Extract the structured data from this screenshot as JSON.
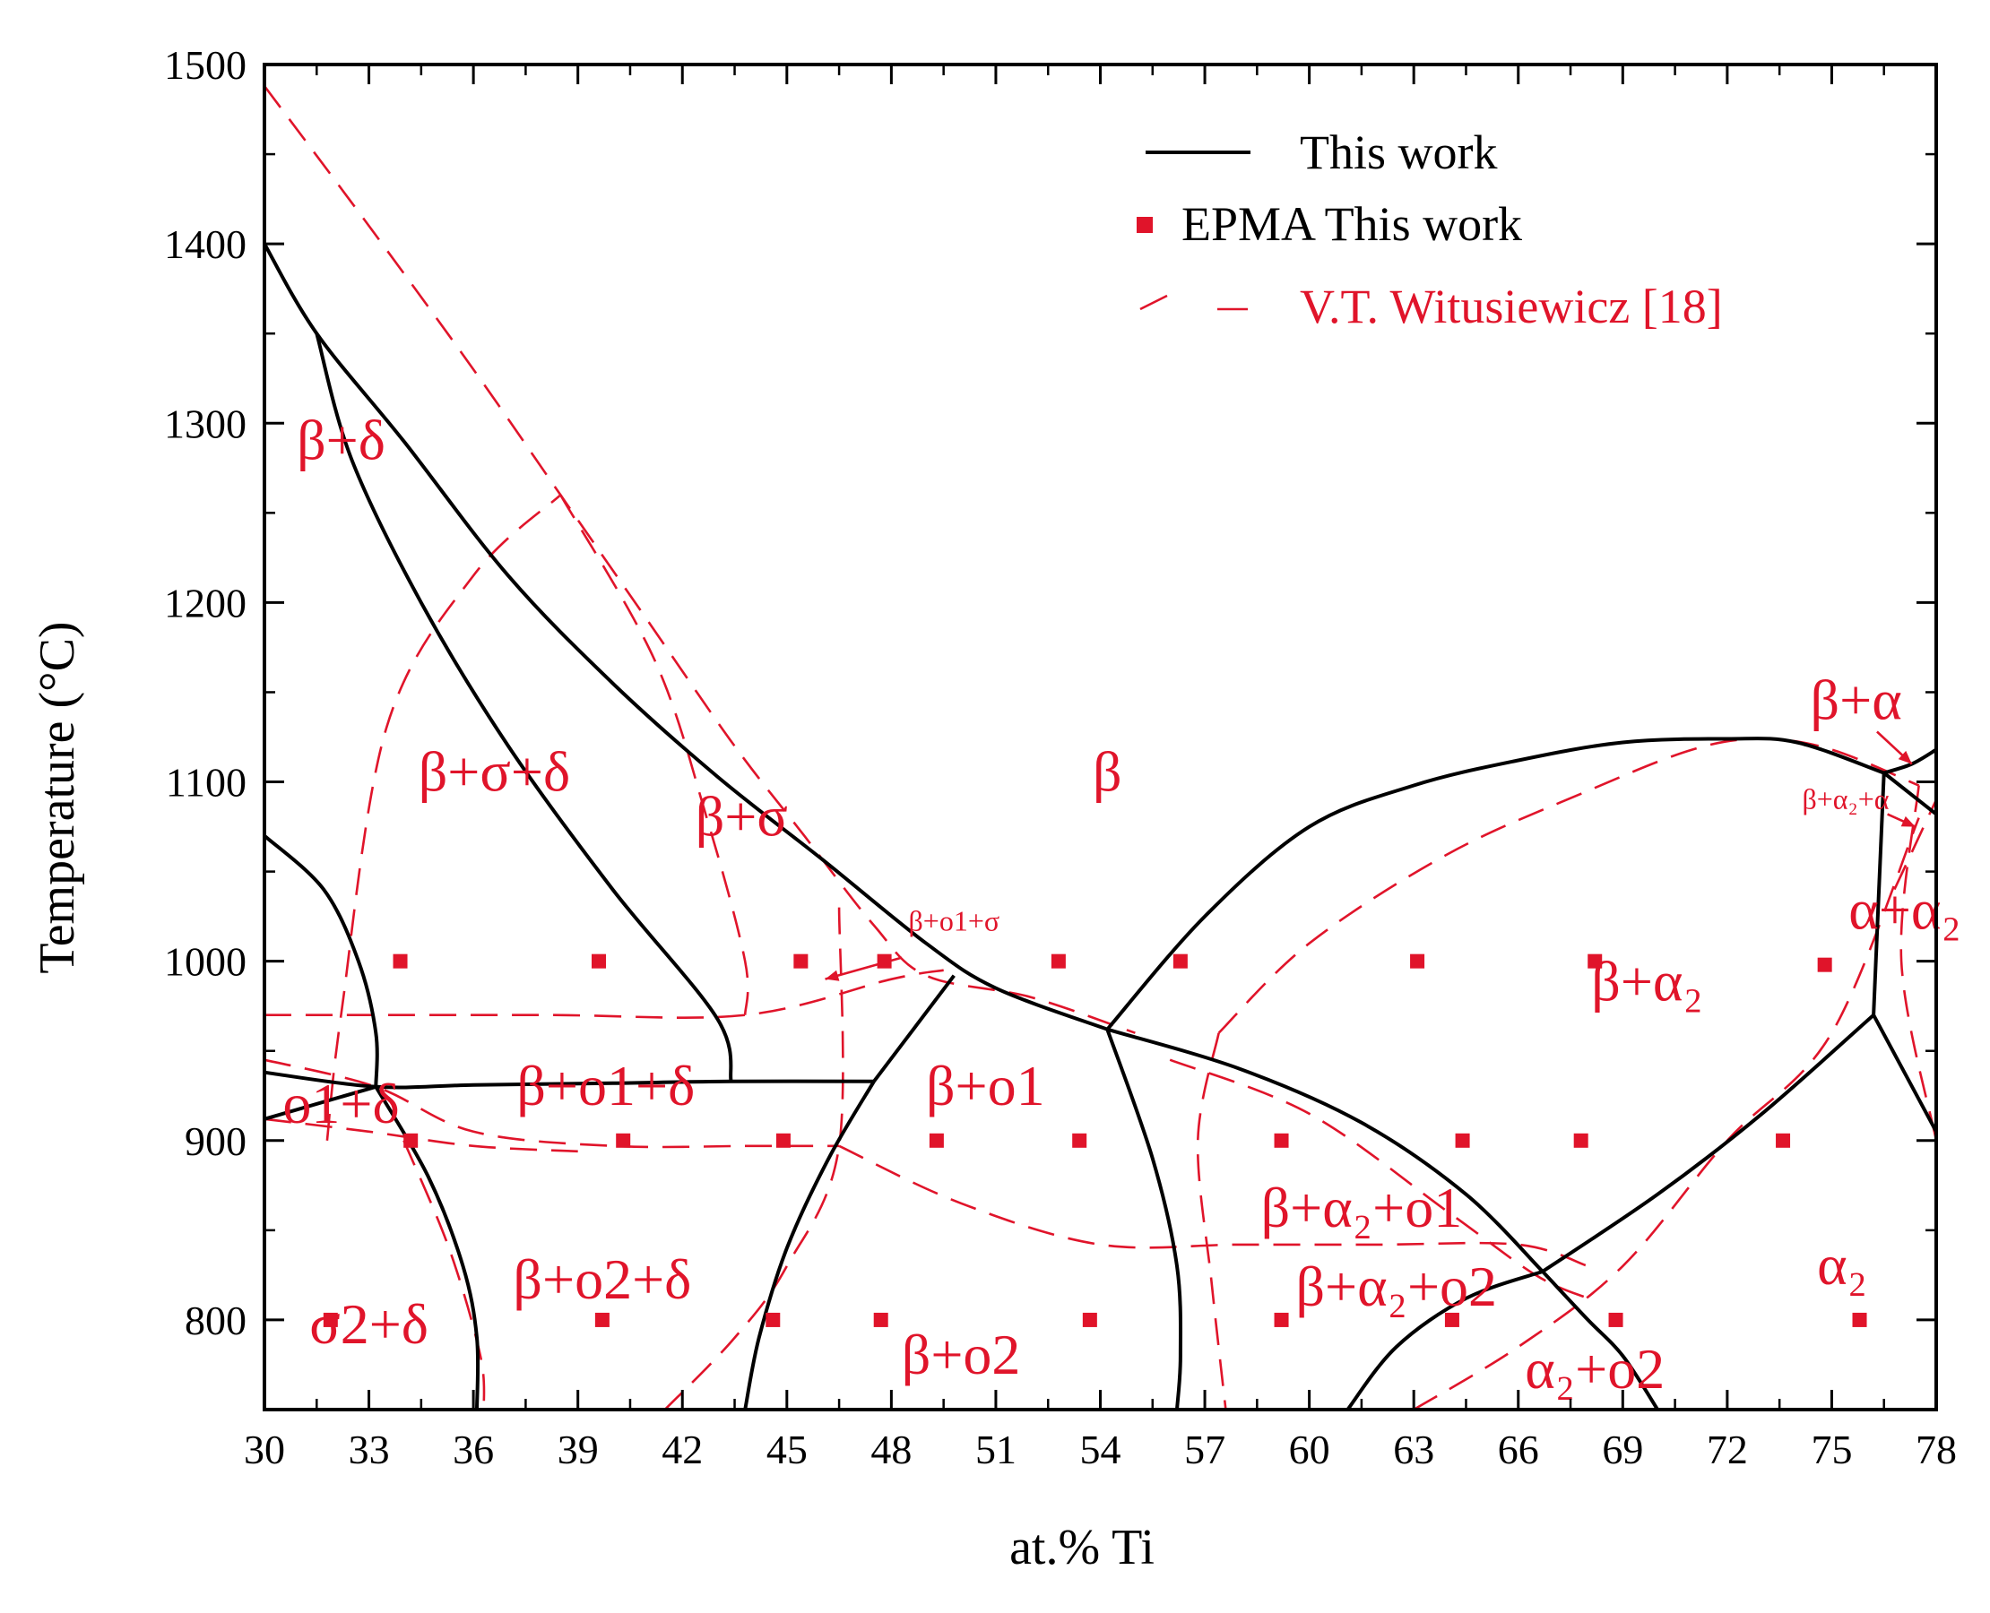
{
  "chart_data": {
    "type": "scatter",
    "title": "",
    "xlabel": "at.% Ti",
    "ylabel": "Temperature (°C)",
    "xlim": [
      30,
      78
    ],
    "ylim": [
      750,
      1500
    ],
    "xticks": [
      30,
      33,
      36,
      39,
      42,
      45,
      48,
      51,
      54,
      57,
      60,
      63,
      66,
      69,
      72,
      75,
      78
    ],
    "yticks": [
      800,
      900,
      1000,
      1100,
      1200,
      1300,
      1400,
      1500
    ],
    "colors": {
      "this_work": "#000000",
      "reference": "#e0142a",
      "epma": "#e0142a"
    },
    "legend": {
      "position": "top-right",
      "entries": [
        {
          "label": "This work",
          "style": "solid-line",
          "color": "#000000"
        },
        {
          "label": "EPMA This work",
          "style": "square-marker",
          "color": "#e0142a"
        },
        {
          "label": "V.T. Witusiewicz [18]",
          "style": "dashed-line",
          "color": "#e0142a"
        }
      ]
    },
    "epma_points": [
      [
        33.9,
        1000
      ],
      [
        39.6,
        1000
      ],
      [
        45.4,
        1000
      ],
      [
        47.8,
        1000
      ],
      [
        52.8,
        1000
      ],
      [
        56.3,
        1000
      ],
      [
        63.1,
        1000
      ],
      [
        68.2,
        1000
      ],
      [
        74.8,
        998
      ],
      [
        34.2,
        900
      ],
      [
        40.3,
        900
      ],
      [
        44.9,
        900
      ],
      [
        49.3,
        900
      ],
      [
        53.4,
        900
      ],
      [
        59.2,
        900
      ],
      [
        64.4,
        900
      ],
      [
        67.8,
        900
      ],
      [
        73.6,
        900
      ],
      [
        31.9,
        800
      ],
      [
        39.7,
        800
      ],
      [
        44.6,
        800
      ],
      [
        47.7,
        800
      ],
      [
        53.7,
        800
      ],
      [
        59.2,
        800
      ],
      [
        64.1,
        800
      ],
      [
        68.8,
        800
      ],
      [
        75.8,
        800
      ]
    ],
    "series": [
      {
        "name": "This work",
        "style": "solid",
        "segments": [
          [
            [
              30,
              1400
            ],
            [
              31.5,
              1350
            ],
            [
              34,
              1290
            ],
            [
              37,
              1215
            ],
            [
              40,
              1155
            ],
            [
              43,
              1103
            ],
            [
              46,
              1057
            ],
            [
              49,
              1010
            ],
            [
              51,
              985
            ],
            [
              54.2,
              962
            ]
          ],
          [
            [
              31.5,
              1350
            ],
            [
              32.5,
              1280
            ],
            [
              34.5,
              1200
            ],
            [
              37,
              1120
            ],
            [
              40,
              1040
            ],
            [
              43,
              968
            ],
            [
              43.4,
              933
            ]
          ],
          [
            [
              30,
              1070
            ],
            [
              31.7,
              1040
            ],
            [
              32.7,
              1000
            ],
            [
              33.2,
              960
            ],
            [
              33.2,
              930
            ]
          ],
          [
            [
              30,
              938
            ],
            [
              33.2,
              930
            ],
            [
              36,
              931
            ],
            [
              40,
              932
            ],
            [
              43.4,
              933
            ],
            [
              47.5,
              933
            ]
          ],
          [
            [
              30,
              912
            ],
            [
              33.2,
              930
            ]
          ],
          [
            [
              33.2,
              930
            ],
            [
              34.7,
              880
            ],
            [
              35.7,
              830
            ],
            [
              36.1,
              790
            ],
            [
              36.1,
              750
            ]
          ],
          [
            [
              47.5,
              933
            ],
            [
              46.2,
              890
            ],
            [
              45,
              840
            ],
            [
              44.2,
              790
            ],
            [
              43.8,
              750
            ]
          ],
          [
            [
              47.5,
              933
            ],
            [
              49.8,
              992
            ]
          ],
          [
            [
              54.2,
              962
            ],
            [
              55.5,
              890
            ],
            [
              56.2,
              830
            ],
            [
              56.3,
              780
            ],
            [
              56.2,
              750
            ]
          ],
          [
            [
              54.2,
              962
            ],
            [
              57,
              1025
            ],
            [
              60,
              1075
            ],
            [
              63,
              1098
            ],
            [
              66,
              1112
            ],
            [
              69,
              1122
            ],
            [
              72,
              1124
            ],
            [
              74,
              1122
            ],
            [
              76.5,
              1105
            ]
          ],
          [
            [
              54.2,
              962
            ],
            [
              58,
              940
            ],
            [
              61.5,
              910
            ],
            [
              64.5,
              870
            ],
            [
              66.7,
              827
            ]
          ],
          [
            [
              61.1,
              750
            ],
            [
              62.5,
              785
            ],
            [
              64.5,
              812
            ],
            [
              66.7,
              827
            ]
          ],
          [
            [
              66.7,
              827
            ],
            [
              68,
              800
            ],
            [
              69,
              780
            ],
            [
              70,
              750
            ]
          ],
          [
            [
              66.7,
              827
            ],
            [
              70,
              870
            ],
            [
              73,
              915
            ],
            [
              76.2,
              970
            ]
          ],
          [
            [
              76.2,
              970
            ],
            [
              76.5,
              1105
            ]
          ],
          [
            [
              76.2,
              970
            ],
            [
              78,
              905
            ]
          ],
          [
            [
              76.5,
              1105
            ],
            [
              77.3,
              1110
            ],
            [
              78,
              1118
            ]
          ],
          [
            [
              76.5,
              1105
            ],
            [
              78,
              1082
            ]
          ],
          [
            [
              78,
              1040
            ],
            [
              78,
              1118
            ]
          ]
        ]
      },
      {
        "name": "V.T. Witusiewicz [18]",
        "style": "dashed",
        "segments": [
          [
            [
              30,
              1488
            ],
            [
              33,
              1410
            ],
            [
              36,
              1330
            ],
            [
              38.5,
              1260
            ],
            [
              41,
              1190
            ],
            [
              43.5,
              1120
            ],
            [
              45.5,
              1070
            ],
            [
              47.5,
              1020
            ],
            [
              49,
              992
            ],
            [
              52,
              980
            ],
            [
              55,
              960
            ]
          ],
          [
            [
              38.5,
              1260
            ],
            [
              41.2,
              1168
            ],
            [
              42.7,
              1080
            ],
            [
              43.8,
              1000
            ],
            [
              43.8,
              970
            ]
          ],
          [
            [
              31.8,
              900
            ],
            [
              32.2,
              970
            ],
            [
              33.5,
              1130
            ],
            [
              36,
              1215
            ],
            [
              38.5,
              1260
            ]
          ],
          [
            [
              30,
              970
            ],
            [
              38,
              970
            ],
            [
              43.8,
              970
            ],
            [
              48,
              990
            ],
            [
              49.5,
              995
            ]
          ],
          [
            [
              30,
              945
            ],
            [
              33.2,
              930
            ],
            [
              36,
              905
            ],
            [
              40,
              897
            ],
            [
              44,
              897
            ],
            [
              46.5,
              897
            ]
          ],
          [
            [
              30,
              912
            ],
            [
              33,
              905
            ],
            [
              36,
              897
            ],
            [
              39,
              894
            ]
          ],
          [
            [
              34,
              900
            ],
            [
              35.3,
              840
            ],
            [
              36.2,
              780
            ],
            [
              36.3,
              750
            ]
          ],
          [
            [
              46.5,
              1030
            ],
            [
              46.5,
              897
            ],
            [
              45,
              830
            ],
            [
              43.5,
              790
            ],
            [
              41.5,
              750
            ]
          ],
          [
            [
              46.5,
              897
            ],
            [
              50,
              865
            ],
            [
              54,
              842
            ],
            [
              58,
              842
            ],
            [
              62,
              842
            ],
            [
              66,
              842
            ],
            [
              68,
              830
            ]
          ],
          [
            [
              57.4,
              960
            ],
            [
              56.8,
              900
            ],
            [
              57.2,
              820
            ],
            [
              57.6,
              750
            ]
          ],
          [
            [
              57.4,
              960
            ],
            [
              60,
              1010
            ],
            [
              64,
              1060
            ],
            [
              68,
              1095
            ],
            [
              71,
              1118
            ],
            [
              73,
              1124
            ],
            [
              75,
              1118
            ],
            [
              77.5,
              1098
            ]
          ],
          [
            [
              56,
              945
            ],
            [
              60,
              915
            ],
            [
              64,
              860
            ],
            [
              66.5,
              825
            ],
            [
              68,
              812
            ]
          ],
          [
            [
              63,
              750
            ],
            [
              66,
              785
            ],
            [
              69,
              830
            ],
            [
              72,
              900
            ],
            [
              75,
              960
            ],
            [
              77.5,
              1080
            ]
          ],
          [
            [
              77.5,
              1098
            ],
            [
              77,
              1000
            ],
            [
              78,
              900
            ]
          ],
          [
            [
              76.8,
              1040
            ],
            [
              78,
              1090
            ]
          ]
        ]
      }
    ],
    "region_labels": [
      {
        "text": "β+δ",
        "x": 32.2,
        "y": 1280
      },
      {
        "text": "β+σ+δ",
        "x": 36.6,
        "y": 1095
      },
      {
        "text": "β+σ",
        "x": 43.7,
        "y": 1070
      },
      {
        "text": "β",
        "x": 54.2,
        "y": 1095
      },
      {
        "text": "β+o1+σ",
        "x": 49.8,
        "y": 1017
      },
      {
        "text": "β+o1+δ",
        "x": 39.8,
        "y": 920
      },
      {
        "text": "o1+δ",
        "x": 32.2,
        "y": 910
      },
      {
        "text": "β+o1",
        "x": 50.7,
        "y": 920
      },
      {
        "text": "β+o2+δ",
        "x": 39.7,
        "y": 812
      },
      {
        "text": "σ2+δ",
        "x": 33,
        "y": 787
      },
      {
        "text": "β+o2",
        "x": 50,
        "y": 770
      },
      {
        "text": "β+α₂",
        "x": 69.7,
        "y": 978
      },
      {
        "text": "β+α₂+o1",
        "x": 61.5,
        "y": 852
      },
      {
        "text": "β+α₂+o2",
        "x": 62.5,
        "y": 808
      },
      {
        "text": "α₂+o2",
        "x": 68.2,
        "y": 762
      },
      {
        "text": "α₂",
        "x": 75.3,
        "y": 820
      },
      {
        "text": "β+α",
        "x": 75.7,
        "y": 1135
      },
      {
        "text": "β+α₂+α",
        "x": 75.4,
        "y": 1085
      },
      {
        "text": "α+α₂",
        "x": 77.1,
        "y": 1018
      }
    ]
  }
}
